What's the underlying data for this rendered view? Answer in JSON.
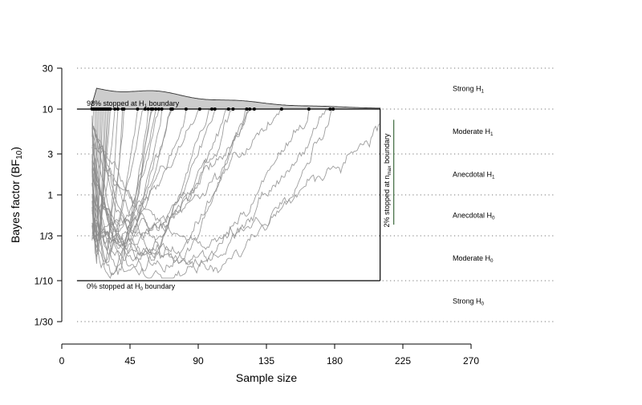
{
  "chart_data": {
    "type": "line",
    "title": "",
    "xlabel": "Sample size",
    "ylabel": "Bayes factor (BF",
    "ylabel_sub": "10",
    "ylabel_close": ")",
    "xlim": [
      0,
      270
    ],
    "x_ticks": [
      0,
      45,
      90,
      135,
      180,
      225,
      270
    ],
    "x_tick_labels": [
      "0",
      "45",
      "90",
      "135",
      "180",
      "225",
      "270"
    ],
    "y_scale": "log",
    "ylim": [
      0.0333,
      30
    ],
    "y_ticks": [
      30,
      10,
      3,
      1,
      0.3333,
      0.1,
      0.0333
    ],
    "y_tick_labels": [
      "30",
      "10",
      "3",
      "1",
      "1/3",
      "1/10",
      "1/30"
    ],
    "grid": "dotted horizontal at tick values",
    "boundaries": {
      "upper": 10,
      "lower": 0.1,
      "n_min": 20,
      "n_max": 210
    },
    "annotations": {
      "upper_stop": {
        "main": "98% stopped at H",
        "sub": "1",
        "tail": " boundary"
      },
      "lower_stop": {
        "main": "0% stopped at H",
        "sub": "0",
        "tail": " boundary"
      },
      "nmax_stop": {
        "main": "2% stopped at n",
        "sub": "max",
        "tail": " boundary"
      }
    },
    "evidence_labels": [
      {
        "main": "Strong H",
        "sub": "1"
      },
      {
        "main": "Moderate H",
        "sub": "1"
      },
      {
        "main": "Anecdotal H",
        "sub": "1"
      },
      {
        "main": "Anecdotal H",
        "sub": "0"
      },
      {
        "main": "Moderate H",
        "sub": "0"
      },
      {
        "main": "Strong H",
        "sub": "0"
      }
    ],
    "stopping_points_n": [
      20,
      21,
      22,
      23,
      24,
      25,
      26,
      27,
      28,
      29,
      30,
      31,
      32,
      35,
      37,
      40,
      41,
      50,
      55,
      57,
      59,
      60,
      62,
      64,
      66,
      72,
      73,
      82,
      91,
      99,
      101,
      110,
      113,
      122,
      124,
      127,
      145,
      163,
      177,
      179
    ],
    "nmax_final_bf_range": [
      0.45,
      7.5
    ],
    "density_peak_n": 23,
    "n_trajectories": 40,
    "colors": {
      "trajectory": "#8c8c8c",
      "density_fill": "#cccccc",
      "axis": "#000000",
      "grid": "#777777"
    }
  }
}
